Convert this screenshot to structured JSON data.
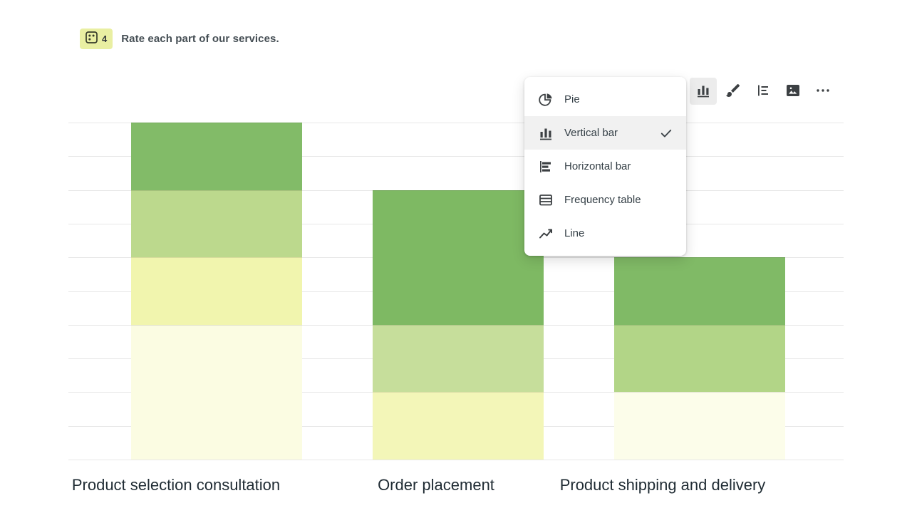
{
  "question": {
    "number": "4",
    "title": "Rate each part of our services.",
    "badge_color": "#e9efa2",
    "type_icon": "matrix-question-icon"
  },
  "toolbar": {
    "buttons": [
      {
        "name": "chart-type",
        "icon": "vertical-bar-chart-icon",
        "active": true
      },
      {
        "name": "color-style",
        "icon": "brush-icon",
        "active": false
      },
      {
        "name": "values",
        "icon": "values-lines-icon",
        "active": false
      },
      {
        "name": "media",
        "icon": "image-icon",
        "active": false
      },
      {
        "name": "more",
        "icon": "ellipsis-icon",
        "active": false
      }
    ]
  },
  "dropdown": {
    "items": [
      {
        "label": "Pie",
        "icon": "pie-chart-icon",
        "selected": false
      },
      {
        "label": "Vertical bar",
        "icon": "vertical-bar-chart-icon",
        "selected": true
      },
      {
        "label": "Horizontal bar",
        "icon": "horizontal-bar-chart-icon",
        "selected": false
      },
      {
        "label": "Frequency table",
        "icon": "frequency-table-icon",
        "selected": false
      },
      {
        "label": "Line",
        "icon": "line-chart-icon",
        "selected": false
      }
    ],
    "check_icon": "check-icon"
  },
  "chart_data": {
    "type": "bar",
    "stacked": true,
    "grid": true,
    "legend": false,
    "ylim": [
      0,
      10
    ],
    "gridline_count": 11,
    "categories": [
      "Product selection consultation",
      "Order placement",
      "Product shipping and delivery"
    ],
    "bars": [
      {
        "category": "Product selection consultation",
        "total": 10,
        "segments": [
          {
            "value": 4,
            "color": "#fbfce2"
          },
          {
            "value": 2,
            "color": "#f1f5ae"
          },
          {
            "value": 2,
            "color": "#bcd98d"
          },
          {
            "value": 2,
            "color": "#82bb68"
          }
        ]
      },
      {
        "category": "Order placement",
        "total": 8,
        "segments": [
          {
            "value": 2,
            "color": "#f3f6b8"
          },
          {
            "value": 2,
            "color": "#c6de9b"
          },
          {
            "value": 4,
            "color": "#7eb963"
          }
        ]
      },
      {
        "category": "Product shipping and delivery",
        "total": 6,
        "segments": [
          {
            "value": 2,
            "color": "#fcfdea"
          },
          {
            "value": 2,
            "color": "#b2d587"
          },
          {
            "value": 2,
            "color": "#80ba66"
          }
        ]
      }
    ]
  }
}
